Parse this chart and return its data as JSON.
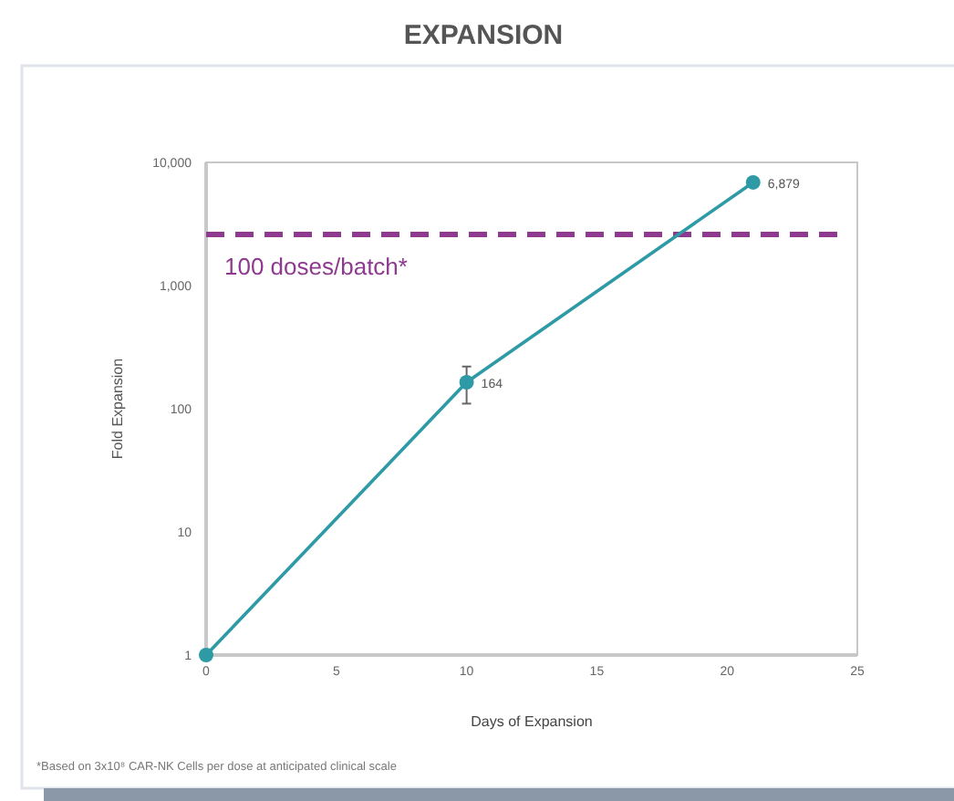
{
  "chart_data": {
    "type": "line",
    "title": "EXPANSION",
    "xlabel": "Days of Expansion",
    "ylabel": "Fold Expansion",
    "x": [
      0,
      10,
      21
    ],
    "series": [
      {
        "color": "#2e9aa6",
        "values": [
          1,
          164,
          6879
        ],
        "errors": [
          null,
          [
            110,
            220
          ],
          null
        ],
        "value_labels": [
          null,
          "164",
          "6,879"
        ]
      }
    ],
    "xlim": [
      0,
      25
    ],
    "xticks": [
      0,
      5,
      10,
      15,
      20,
      25
    ],
    "ylim": [
      1,
      10000
    ],
    "yticks": [
      {
        "value": 1,
        "label": "1"
      },
      {
        "value": 10,
        "label": "10"
      },
      {
        "value": 100,
        "label": "100"
      },
      {
        "value": 1000,
        "label": "1,000"
      },
      {
        "value": 10000,
        "label": "10,000"
      }
    ],
    "log": "y",
    "grid": false,
    "marker": "circle",
    "line_style": "solid",
    "ref_lines": [
      {
        "axis": "y",
        "value": 2600,
        "label": "100 doses/batch*",
        "color": "#8e3a8e",
        "line_style": "dashed"
      }
    ],
    "annotations": [
      "*Based on 3x10⁸ CAR-NK Cells per dose at anticipated clinical scale"
    ]
  }
}
